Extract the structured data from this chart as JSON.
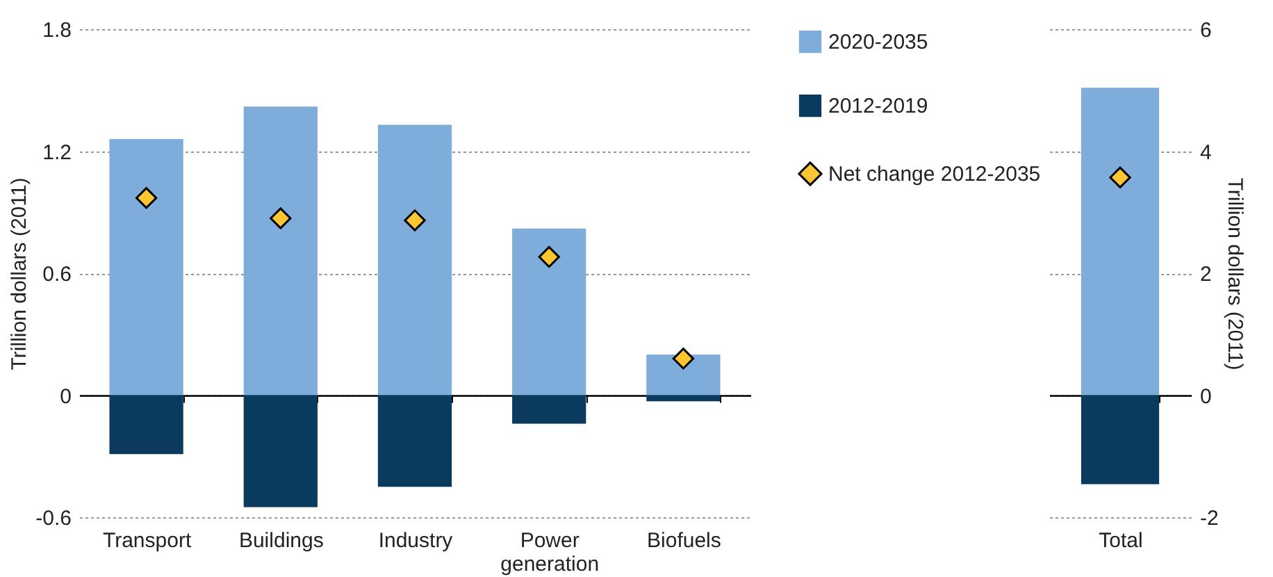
{
  "chart_data": [
    {
      "type": "bar",
      "stacked": true,
      "ylabel": "Trillion dollars (2011)",
      "categories": [
        "Transport",
        "Buildings",
        "Industry",
        "Power generation",
        "Biofuels"
      ],
      "ylim": [
        -0.6,
        1.8
      ],
      "yticks": [
        -0.6,
        0,
        0.6,
        1.2,
        1.8
      ],
      "grid": "y",
      "legend": "right",
      "marker": "diamond",
      "series": [
        {
          "name": "2020-2035",
          "color": "#7eaddc",
          "values": [
            1.26,
            1.42,
            1.33,
            0.82,
            0.2
          ]
        },
        {
          "name": "2012-2019",
          "color": "#0b3a5f",
          "values": [
            -0.29,
            -0.55,
            -0.45,
            -0.14,
            -0.03
          ]
        },
        {
          "name": "Net change 2012-2035",
          "type": "scatter",
          "color": "#fbc631",
          "values": [
            0.97,
            0.87,
            0.86,
            0.68,
            0.18
          ]
        }
      ]
    },
    {
      "type": "bar",
      "stacked": true,
      "y2label": "Trillion dollars (2011)",
      "categories": [
        "Total"
      ],
      "y2lim": [
        -2,
        6
      ],
      "y2ticks": [
        -2,
        0,
        2,
        4,
        6
      ],
      "grid": "y",
      "marker": "diamond",
      "series": [
        {
          "color": "#7eaddc",
          "axis": "y2",
          "values": [
            5.04
          ]
        },
        {
          "color": "#0b3a5f",
          "axis": "y2",
          "values": [
            -1.46
          ]
        },
        {
          "type": "scatter",
          "axis": "y2",
          "color": "#fbc631",
          "values": [
            3.57
          ]
        }
      ]
    }
  ]
}
